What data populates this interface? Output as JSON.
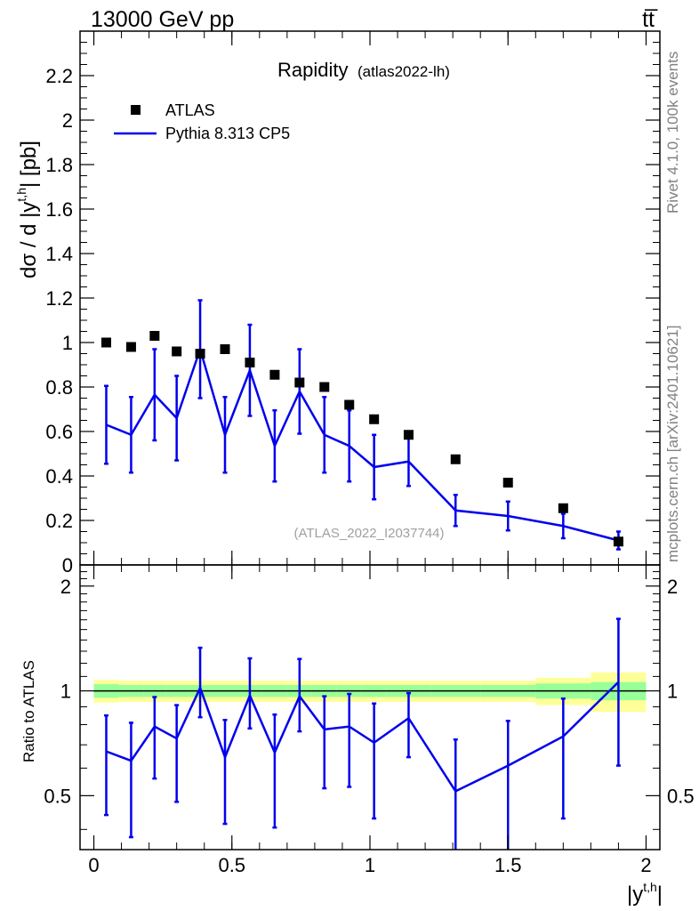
{
  "header": {
    "left": "13000 GeV pp",
    "right": "tt̅"
  },
  "side_labels": {
    "rivet": "Rivet 4.1.0,  100k events",
    "mcplots": "mcplots.cern.ch [arXiv:2401.10621]"
  },
  "colors": {
    "data": "#000000",
    "mc": "#0000ee",
    "band_inner": "#99ff99",
    "band_outer": "#ffff99"
  },
  "chart_data": [
    {
      "type": "scatter",
      "panel": "main",
      "title": "Rapidity",
      "subtitle": "(atlas2022-lh)",
      "watermark": "(ATLAS_2022_I2037744)",
      "ylabel_main": "dσ / d |y",
      "ylabel_sup": "t,h",
      "ylabel_tail": "| [pb]",
      "ylim": [
        0,
        2.4
      ],
      "yticks": [
        "0",
        "0.2",
        "0.4",
        "0.6",
        "0.8",
        "1",
        "1.2",
        "1.4",
        "1.6",
        "1.8",
        "2",
        "2.2"
      ],
      "legend_position": "top-left",
      "series": [
        {
          "name": "ATLAS",
          "kind": "markers",
          "x": [
            0.045,
            0.135,
            0.22,
            0.3,
            0.385,
            0.475,
            0.565,
            0.655,
            0.745,
            0.835,
            0.925,
            1.015,
            1.14,
            1.31,
            1.5,
            1.7,
            1.9
          ],
          "values": [
            1.0,
            0.98,
            1.03,
            0.96,
            0.95,
            0.97,
            0.91,
            0.855,
            0.82,
            0.8,
            0.72,
            0.655,
            0.585,
            0.475,
            0.37,
            0.255,
            0.105
          ]
        },
        {
          "name": "Pythia 8.313 CP5",
          "kind": "line",
          "x": [
            0.045,
            0.135,
            0.22,
            0.3,
            0.385,
            0.475,
            0.565,
            0.655,
            0.745,
            0.835,
            0.925,
            1.015,
            1.14,
            1.31,
            1.5,
            1.7,
            1.9
          ],
          "values": [
            0.63,
            0.585,
            0.765,
            0.66,
            0.97,
            0.585,
            0.875,
            0.535,
            0.78,
            0.585,
            0.535,
            0.44,
            0.465,
            0.245,
            0.22,
            0.175,
            0.11
          ],
          "err": [
            0.175,
            0.17,
            0.205,
            0.19,
            0.22,
            0.17,
            0.205,
            0.16,
            0.19,
            0.17,
            0.16,
            0.145,
            0.11,
            0.07,
            0.065,
            0.055,
            0.04
          ]
        }
      ]
    },
    {
      "type": "line",
      "panel": "ratio",
      "ylabel": "Ratio to ATLAS",
      "xlabel": "|y",
      "xlabel_sup": "t,h",
      "xlabel_tail": "|",
      "xlim": [
        -0.05,
        2.05
      ],
      "ylim": [
        0.35,
        2.3
      ],
      "xticks": [
        "0",
        "0.5",
        "1",
        "1.5",
        "2"
      ],
      "yticks": [
        "0.5",
        "1",
        "2"
      ],
      "bins": [
        0,
        0.09,
        0.18,
        0.26,
        0.34,
        0.43,
        0.52,
        0.61,
        0.7,
        0.79,
        0.88,
        0.97,
        1.06,
        1.22,
        1.4,
        1.6,
        1.8,
        2.0
      ],
      "band_inner": [
        0.045,
        0.04,
        0.04,
        0.04,
        0.04,
        0.04,
        0.04,
        0.04,
        0.04,
        0.04,
        0.04,
        0.04,
        0.04,
        0.04,
        0.04,
        0.05,
        0.06
      ],
      "band_outer": [
        0.075,
        0.07,
        0.07,
        0.07,
        0.07,
        0.07,
        0.07,
        0.07,
        0.07,
        0.07,
        0.07,
        0.07,
        0.07,
        0.07,
        0.07,
        0.09,
        0.13
      ],
      "x": [
        0.045,
        0.135,
        0.22,
        0.3,
        0.385,
        0.475,
        0.565,
        0.655,
        0.745,
        0.835,
        0.925,
        1.015,
        1.14,
        1.31,
        1.5,
        1.7,
        1.9
      ],
      "values": [
        0.67,
        0.63,
        0.79,
        0.73,
        1.02,
        0.645,
        0.97,
        0.665,
        0.965,
        0.775,
        0.79,
        0.71,
        0.835,
        0.515,
        0.61,
        0.74,
        1.06
      ],
      "err_lo": [
        0.23,
        0.25,
        0.23,
        0.25,
        0.18,
        0.23,
        0.19,
        0.26,
        0.2,
        0.25,
        0.26,
        0.28,
        0.19,
        0.2,
        0.3,
        0.31,
        0.45
      ],
      "err_hi": [
        0.18,
        0.18,
        0.17,
        0.18,
        0.31,
        0.18,
        0.27,
        0.19,
        0.27,
        0.19,
        0.19,
        0.21,
        0.15,
        0.21,
        0.21,
        0.21,
        0.55
      ]
    }
  ]
}
